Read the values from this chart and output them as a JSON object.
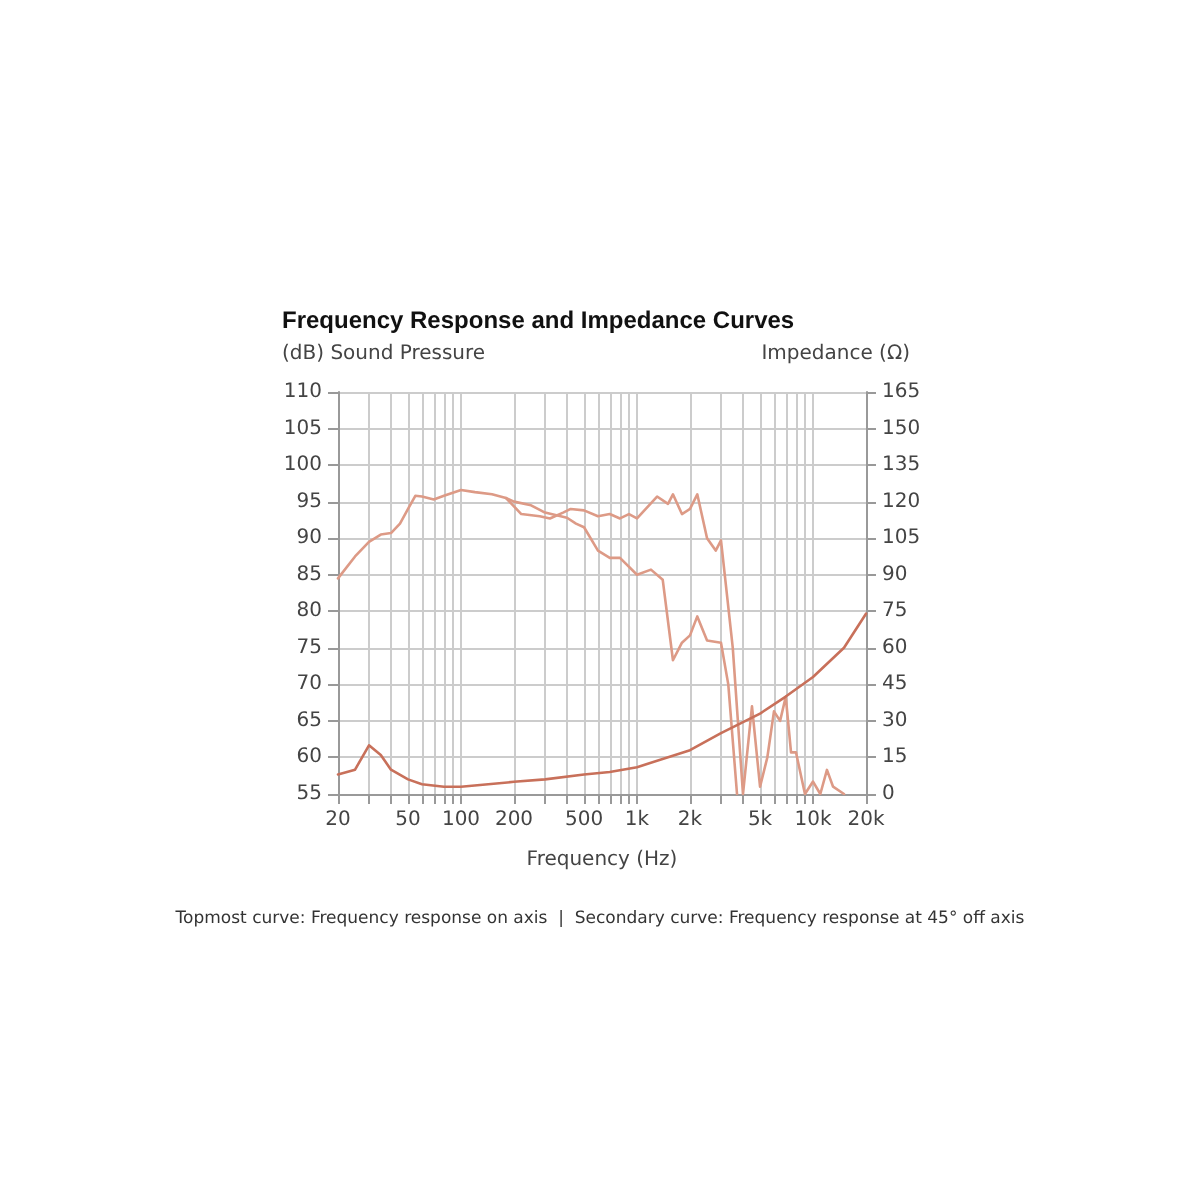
{
  "chart_data": {
    "type": "line",
    "title": "Frequency Response and Impedance Curves",
    "xlabel": "Frequency (Hz)",
    "ylabel": "(dB) Sound Pressure",
    "y2label": "Impedance (Ω)",
    "log": "x",
    "grid": true,
    "marker": "none",
    "line_style": "solid",
    "xlim": [
      20,
      20000
    ],
    "xticks": [
      20,
      {
        "value": 30,
        "label": null
      },
      {
        "value": 40,
        "label": null
      },
      50,
      {
        "value": 60,
        "label": null
      },
      {
        "value": 70,
        "label": null
      },
      {
        "value": 80,
        "label": null
      },
      {
        "value": 90,
        "label": null
      },
      100,
      200,
      {
        "value": 300,
        "label": null
      },
      {
        "value": 400,
        "label": null
      },
      500,
      {
        "value": 600,
        "label": null
      },
      {
        "value": 700,
        "label": null
      },
      {
        "value": 800,
        "label": null
      },
      {
        "value": 900,
        "label": null
      },
      {
        "value": 1000,
        "label": "1k"
      },
      {
        "value": 2000,
        "label": "2k"
      },
      {
        "value": 3000,
        "label": null
      },
      {
        "value": 4000,
        "label": null
      },
      {
        "value": 5000,
        "label": "5k"
      },
      {
        "value": 6000,
        "label": null
      },
      {
        "value": 7000,
        "label": null
      },
      {
        "value": 8000,
        "label": null
      },
      {
        "value": 9000,
        "label": null
      },
      {
        "value": 10000,
        "label": "10k"
      },
      {
        "value": 20000,
        "label": "20k"
      }
    ],
    "ylim": [
      55,
      110
    ],
    "yticks": [
      55,
      60,
      65,
      70,
      75,
      80,
      85,
      90,
      95,
      100,
      105,
      110
    ],
    "y2lim": [
      0,
      165
    ],
    "y2ticks": [
      0,
      15,
      30,
      45,
      60,
      75,
      90,
      105,
      120,
      135,
      150,
      165
    ],
    "series": [
      {
        "color": "#dd9a86",
        "x": [
          20,
          25,
          30,
          35,
          40,
          45,
          50,
          55,
          60,
          70,
          80,
          100,
          120,
          150,
          180,
          220,
          280,
          320,
          380,
          420,
          500,
          600,
          700,
          800,
          900,
          1000,
          1300,
          1500,
          1600,
          1800,
          2000,
          2200,
          2500,
          2800,
          3000,
          3500,
          4000,
          4500,
          5000,
          5500,
          6000,
          6500,
          7000,
          7500,
          8000,
          9000,
          10000,
          11000,
          12000,
          13000,
          15000
        ],
        "values": [
          84.5,
          87.5,
          89.5,
          90.5,
          90.7,
          92,
          94,
          95.8,
          95.7,
          95.3,
          95.8,
          96.6,
          96.3,
          96,
          95.5,
          93.3,
          93,
          92.7,
          93.5,
          94,
          93.8,
          93,
          93.3,
          92.7,
          93.3,
          92.7,
          95.7,
          94.7,
          96,
          93.3,
          94,
          96,
          90,
          88.3,
          89.7,
          75,
          55,
          67,
          56,
          60,
          66.3,
          65,
          68.3,
          60.7,
          60.7,
          55,
          56.7,
          55,
          58.3,
          56,
          55
        ]
      },
      {
        "color": "#dd9a86",
        "x": [
          180,
          200,
          250,
          300,
          400,
          450,
          500,
          600,
          700,
          800,
          1000,
          1200,
          1400,
          1600,
          1800,
          2000,
          2200,
          2500,
          3000,
          3300,
          3700
        ],
        "values": [
          95.5,
          95,
          94.5,
          93.5,
          92.8,
          92,
          91.5,
          88.3,
          87.3,
          87.3,
          85,
          85.7,
          84.3,
          73.3,
          75.7,
          76.7,
          79.3,
          76,
          75.7,
          70,
          55
        ]
      },
      {
        "color": "#c8705a",
        "axis": "y2",
        "x": [
          20,
          25,
          30,
          35,
          40,
          50,
          60,
          80,
          100,
          200,
          300,
          500,
          700,
          1000,
          2000,
          3000,
          5000,
          7000,
          10000,
          15000,
          20000
        ],
        "values": [
          8,
          10,
          20,
          16,
          10,
          6,
          4,
          3,
          3,
          5,
          6,
          8,
          9,
          11,
          18,
          25,
          33,
          40,
          48,
          60,
          74
        ]
      }
    ],
    "annotations": [
      "Topmost curve: Frequency response on axis  |  Secondary curve: Frequency response at 45° off axis"
    ]
  }
}
